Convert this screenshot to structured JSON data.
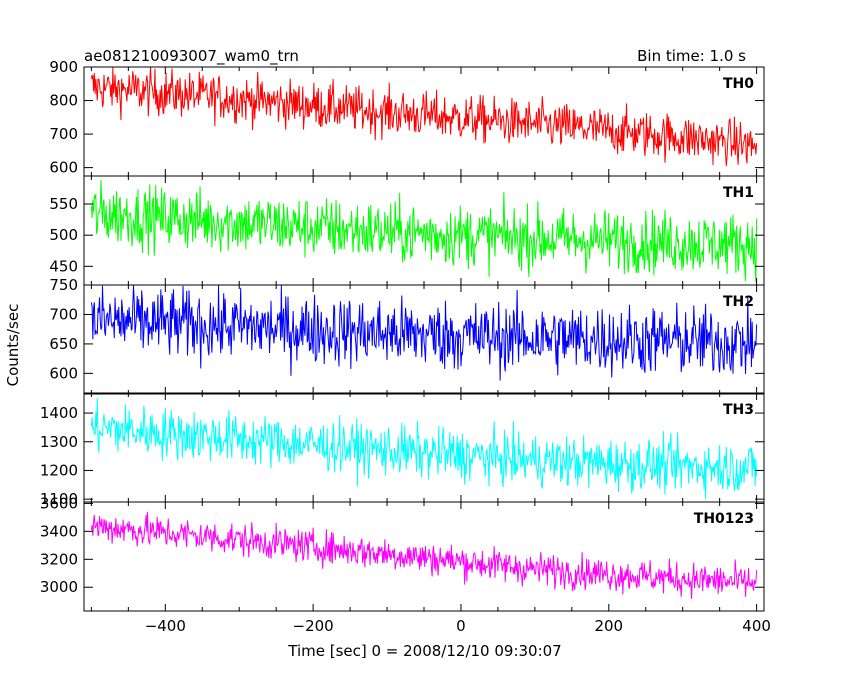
{
  "header": {
    "title": "ae081210093007_wam0_trn",
    "bin_time": "Bin time: 1.0 s"
  },
  "axes": {
    "ylabel": "Counts/sec",
    "xlabel": "Time [sec] 0 = 2008/12/10 09:30:07"
  },
  "chart_data": {
    "type": "line",
    "x_range": [
      -510,
      410
    ],
    "x_ticks": [
      -400,
      -200,
      0,
      200,
      400
    ],
    "x_tick_labels": [
      "−400",
      "−200",
      "0",
      "200",
      "400"
    ],
    "x_start": -500,
    "x_end": 400,
    "bin_seconds": 1.0,
    "panels": [
      {
        "name": "TH0",
        "color": "#ff0000",
        "ylim": [
          575,
          900
        ],
        "ticks": [
          600,
          700,
          800,
          900
        ],
        "trend": [
          [
            -500,
            840
          ],
          [
            -300,
            805
          ],
          [
            -100,
            765
          ],
          [
            100,
            730
          ],
          [
            300,
            690
          ],
          [
            400,
            665
          ]
        ],
        "scatter": 35,
        "range": [
          605,
          900
        ]
      },
      {
        "name": "TH1",
        "color": "#00ff00",
        "ylim": [
          420,
          595
        ],
        "ticks": [
          450,
          500,
          550
        ],
        "trend": [
          [
            -500,
            535
          ],
          [
            -300,
            520
          ],
          [
            -100,
            505
          ],
          [
            100,
            495
          ],
          [
            300,
            488
          ],
          [
            400,
            485
          ]
        ],
        "scatter": 25,
        "range": [
          420,
          595
        ]
      },
      {
        "name": "TH2",
        "color": "#0000ff",
        "ylim": [
          565,
          750
        ],
        "ticks": [
          600,
          650,
          700,
          750
        ],
        "trend": [
          [
            -500,
            690
          ],
          [
            -300,
            680
          ],
          [
            -100,
            668
          ],
          [
            100,
            660
          ],
          [
            300,
            655
          ],
          [
            400,
            652
          ]
        ],
        "scatter": 30,
        "range": [
          565,
          750
        ]
      },
      {
        "name": "TH3",
        "color": "#00ffff",
        "ylim": [
          1090,
          1470
        ],
        "ticks": [
          1100,
          1200,
          1300,
          1400
        ],
        "trend": [
          [
            -500,
            1350
          ],
          [
            -300,
            1310
          ],
          [
            -100,
            1270
          ],
          [
            100,
            1235
          ],
          [
            300,
            1215
          ],
          [
            400,
            1210
          ]
        ],
        "scatter": 45,
        "range": [
          1100,
          1460
        ]
      },
      {
        "name": "TH0123",
        "color": "#ff00ff",
        "ylim": [
          2830,
          3610
        ],
        "ticks": [
          3000,
          3200,
          3400,
          3600
        ],
        "trend": [
          [
            -500,
            3440
          ],
          [
            -300,
            3340
          ],
          [
            -100,
            3240
          ],
          [
            100,
            3130
          ],
          [
            300,
            3060
          ],
          [
            400,
            3030
          ]
        ],
        "scatter": 60,
        "range": [
          2900,
          3610
        ]
      }
    ]
  }
}
